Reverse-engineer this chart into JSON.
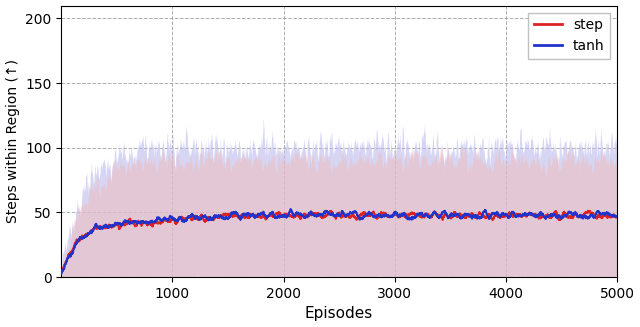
{
  "xlabel": "Episodes",
  "ylabel": "Steps within Region (↑)",
  "xlim": [
    0,
    5000
  ],
  "ylim": [
    0,
    210
  ],
  "yticks": [
    0,
    50,
    100,
    150,
    200
  ],
  "xticks": [
    1000,
    2000,
    3000,
    4000,
    5000
  ],
  "step_color": "#dd2222",
  "tanh_color": "#2233cc",
  "step_fill_color": "#f0bbbb",
  "tanh_fill_color": "#bbbbee",
  "step_fill_alpha": 0.55,
  "tanh_fill_alpha": 0.6,
  "line_width": 1.4,
  "grid_color": "#999999",
  "grid_alpha": 0.8,
  "grid_linestyle": "--",
  "legend_labels": [
    "step",
    "tanh"
  ],
  "n_episodes": 5000,
  "background_color": "#ffffff",
  "figsize": [
    6.4,
    3.27
  ],
  "dpi": 100
}
